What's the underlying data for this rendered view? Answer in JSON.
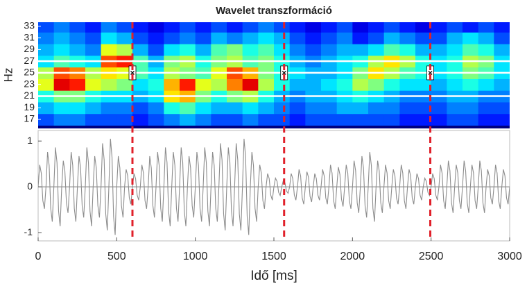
{
  "chart_data": [
    {
      "type": "heatmap",
      "title": "Wavelet transzformáció",
      "ylabel": "Hz",
      "xlim": [
        0,
        3000
      ],
      "ylim": [
        15.45,
        33.7
      ],
      "yticks": [
        17,
        19,
        21,
        23,
        25,
        27,
        29,
        31,
        33
      ],
      "xbins": [
        0,
        100,
        200,
        300,
        400,
        500,
        600,
        700,
        800,
        900,
        1000,
        1100,
        1200,
        1300,
        1400,
        1500,
        1600,
        1700,
        1800,
        1900,
        2000,
        2100,
        2200,
        2300,
        2400,
        2500,
        2600,
        2700,
        2800,
        2900,
        3000
      ],
      "y": [
        17,
        19,
        21,
        23,
        25,
        27,
        29,
        31,
        33
      ],
      "z": [
        [
          0.2,
          0.25,
          0.25,
          0.2,
          0.2,
          0.2,
          0.15,
          0.2,
          0.25,
          0.3,
          0.25,
          0.2,
          0.2,
          0.25,
          0.2,
          0.2,
          0.15,
          0.2,
          0.2,
          0.2,
          0.2,
          0.2,
          0.2,
          0.15,
          0.15,
          0.15,
          0.2,
          0.2,
          0.15,
          0.15
        ],
        [
          0.3,
          0.35,
          0.35,
          0.3,
          0.25,
          0.25,
          0.2,
          0.25,
          0.4,
          0.45,
          0.35,
          0.3,
          0.3,
          0.35,
          0.3,
          0.25,
          0.2,
          0.25,
          0.25,
          0.3,
          0.3,
          0.25,
          0.25,
          0.2,
          0.2,
          0.2,
          0.25,
          0.25,
          0.2,
          0.2
        ],
        [
          0.4,
          0.5,
          0.5,
          0.4,
          0.35,
          0.35,
          0.3,
          0.35,
          0.65,
          0.7,
          0.5,
          0.4,
          0.5,
          0.55,
          0.4,
          0.3,
          0.25,
          0.3,
          0.3,
          0.35,
          0.4,
          0.35,
          0.3,
          0.25,
          0.25,
          0.25,
          0.3,
          0.3,
          0.25,
          0.25
        ],
        [
          0.6,
          0.9,
          0.85,
          0.6,
          0.55,
          0.5,
          0.35,
          0.4,
          0.7,
          0.85,
          0.6,
          0.55,
          0.75,
          0.9,
          0.55,
          0.4,
          0.3,
          0.3,
          0.35,
          0.4,
          0.55,
          0.5,
          0.4,
          0.35,
          0.35,
          0.3,
          0.35,
          0.4,
          0.35,
          0.3
        ],
        [
          0.55,
          0.8,
          0.75,
          0.55,
          0.65,
          0.6,
          0.45,
          0.35,
          0.55,
          0.5,
          0.45,
          0.6,
          0.8,
          0.7,
          0.5,
          0.4,
          0.35,
          0.3,
          0.3,
          0.35,
          0.5,
          0.65,
          0.55,
          0.45,
          0.4,
          0.35,
          0.4,
          0.5,
          0.45,
          0.35
        ],
        [
          0.35,
          0.45,
          0.4,
          0.35,
          0.8,
          0.85,
          0.45,
          0.3,
          0.5,
          0.55,
          0.4,
          0.5,
          0.55,
          0.45,
          0.5,
          0.4,
          0.3,
          0.25,
          0.3,
          0.35,
          0.4,
          0.55,
          0.65,
          0.55,
          0.4,
          0.35,
          0.4,
          0.55,
          0.5,
          0.35
        ],
        [
          0.3,
          0.35,
          0.3,
          0.25,
          0.6,
          0.55,
          0.3,
          0.2,
          0.35,
          0.4,
          0.3,
          0.45,
          0.5,
          0.4,
          0.45,
          0.35,
          0.25,
          0.2,
          0.25,
          0.3,
          0.3,
          0.35,
          0.45,
          0.4,
          0.3,
          0.3,
          0.35,
          0.45,
          0.4,
          0.3
        ],
        [
          0.25,
          0.3,
          0.25,
          0.2,
          0.35,
          0.3,
          0.2,
          0.15,
          0.2,
          0.25,
          0.2,
          0.3,
          0.25,
          0.3,
          0.35,
          0.3,
          0.2,
          0.15,
          0.2,
          0.25,
          0.15,
          0.2,
          0.3,
          0.25,
          0.2,
          0.2,
          0.3,
          0.35,
          0.3,
          0.2
        ],
        [
          0.2,
          0.25,
          0.2,
          0.15,
          0.25,
          0.2,
          0.15,
          0.1,
          0.15,
          0.2,
          0.15,
          0.2,
          0.15,
          0.2,
          0.25,
          0.2,
          0.15,
          0.1,
          0.15,
          0.2,
          0.1,
          0.15,
          0.2,
          0.15,
          0.1,
          0.15,
          0.2,
          0.15,
          0.2,
          0.15
        ]
      ],
      "hlines": [
        21,
        25,
        27
      ],
      "hline_color": "#ffffff",
      "markers": {
        "x": [
          600,
          1565,
          2495
        ],
        "y": [
          25,
          25,
          25
        ]
      }
    },
    {
      "type": "line",
      "xlabel": "Idő [ms]",
      "color": "#8c8c8c",
      "xlim": [
        0,
        3000
      ],
      "ylim": [
        -1.18,
        1.23
      ],
      "xticks": [
        0,
        500,
        1000,
        1500,
        2000,
        2500,
        3000
      ],
      "yticks": [
        -1,
        0,
        1
      ],
      "hlines": [
        0
      ],
      "hline_color": "#777777",
      "vlines": [
        600,
        1565,
        2495
      ],
      "vline_color": "#e0202a",
      "x": [
        0,
        10,
        20,
        30,
        40,
        50,
        60,
        70,
        80,
        90,
        100,
        110,
        120,
        130,
        140,
        150,
        160,
        170,
        180,
        190,
        200,
        210,
        220,
        230,
        240,
        250,
        260,
        270,
        280,
        290,
        300,
        310,
        320,
        330,
        340,
        350,
        360,
        370,
        380,
        390,
        400,
        410,
        420,
        430,
        440,
        450,
        460,
        470,
        480,
        490,
        500,
        510,
        520,
        530,
        540,
        550,
        560,
        570,
        580,
        590,
        600,
        610,
        620,
        630,
        640,
        650,
        660,
        670,
        680,
        690,
        700,
        710,
        720,
        730,
        740,
        750,
        760,
        770,
        780,
        790,
        800,
        810,
        820,
        830,
        840,
        850,
        860,
        870,
        880,
        890,
        900,
        910,
        920,
        930,
        940,
        950,
        960,
        970,
        980,
        990,
        1000,
        1010,
        1020,
        1030,
        1040,
        1050,
        1060,
        1070,
        1080,
        1090,
        1100,
        1110,
        1120,
        1130,
        1140,
        1150,
        1160,
        1170,
        1180,
        1190,
        1200,
        1210,
        1220,
        1230,
        1240,
        1250,
        1260,
        1270,
        1280,
        1290,
        1300,
        1310,
        1320,
        1330,
        1340,
        1350,
        1360,
        1370,
        1380,
        1390,
        1400,
        1410,
        1420,
        1430,
        1440,
        1450,
        1460,
        1470,
        1480,
        1490,
        1500,
        1510,
        1520,
        1530,
        1540,
        1550,
        1560,
        1570,
        1580,
        1590,
        1600,
        1610,
        1620,
        1630,
        1640,
        1650,
        1660,
        1670,
        1680,
        1690,
        1700,
        1710,
        1720,
        1730,
        1740,
        1750,
        1760,
        1770,
        1780,
        1790,
        1800,
        1810,
        1820,
        1830,
        1840,
        1850,
        1860,
        1870,
        1880,
        1890,
        1900,
        1910,
        1920,
        1930,
        1940,
        1950,
        1960,
        1970,
        1980,
        1990,
        2000,
        2010,
        2020,
        2030,
        2040,
        2050,
        2060,
        2070,
        2080,
        2090,
        2100,
        2110,
        2120,
        2130,
        2140,
        2150,
        2160,
        2170,
        2180,
        2190,
        2200,
        2210,
        2220,
        2230,
        2240,
        2250,
        2260,
        2270,
        2280,
        2290,
        2300,
        2310,
        2320,
        2330,
        2340,
        2350,
        2360,
        2370,
        2380,
        2390,
        2400,
        2410,
        2420,
        2430,
        2440,
        2450,
        2460,
        2470,
        2480,
        2490,
        2500,
        2510,
        2520,
        2530,
        2540,
        2550,
        2560,
        2570,
        2580,
        2590,
        2600,
        2610,
        2620,
        2630,
        2640,
        2650,
        2660,
        2670,
        2680,
        2690,
        2700,
        2710,
        2720,
        2730,
        2740,
        2750,
        2760,
        2770,
        2780,
        2790,
        2800,
        2810,
        2820,
        2830,
        2840,
        2850,
        2860,
        2870,
        2880,
        2890,
        2900,
        2910,
        2920,
        2930,
        2940,
        2950,
        2960,
        2970,
        2980,
        2990,
        3000
      ],
      "values": [
        0,
        0.48,
        0.3,
        -0.3,
        -0.48,
        0,
        0.76,
        0.47,
        -0.47,
        -0.76,
        0,
        0.86,
        0.53,
        -0.53,
        -0.86,
        0,
        0.57,
        0.35,
        -0.35,
        -0.57,
        0,
        0.76,
        0.47,
        -0.47,
        -0.76,
        0,
        0.67,
        0.41,
        -0.41,
        -0.67,
        0,
        0.86,
        0.53,
        -0.53,
        -0.86,
        0,
        0.67,
        0.41,
        -0.41,
        -0.67,
        0,
        0.95,
        0.59,
        -0.59,
        -0.95,
        0,
        1.05,
        0.65,
        -0.65,
        -1.05,
        0,
        0.67,
        0.41,
        -0.41,
        -0.67,
        0,
        0.38,
        0.24,
        -0.24,
        -0.38,
        0,
        0.29,
        0.18,
        -0.18,
        -0.29,
        0,
        0.48,
        0.3,
        -0.3,
        -0.48,
        0,
        0.67,
        0.41,
        -0.41,
        -0.67,
        0,
        0.76,
        0.47,
        -0.47,
        -0.76,
        0,
        0.86,
        0.53,
        -0.53,
        -0.86,
        0,
        0.76,
        0.47,
        -0.47,
        -0.76,
        0,
        0.86,
        0.53,
        -0.53,
        -0.86,
        0,
        0.67,
        0.41,
        -0.41,
        -0.67,
        0,
        0.76,
        0.47,
        -0.47,
        -0.76,
        0,
        0.86,
        0.53,
        -0.53,
        -0.86,
        0,
        0.76,
        0.47,
        -0.47,
        -0.76,
        0,
        0.95,
        0.59,
        -0.59,
        -0.95,
        0,
        0.86,
        0.53,
        -0.53,
        -0.86,
        0,
        0.95,
        0.59,
        -0.59,
        -0.95,
        0,
        1.05,
        0.65,
        -0.65,
        -1.05,
        0,
        0.76,
        0.47,
        -0.47,
        -0.76,
        0,
        0.48,
        0.3,
        -0.3,
        -0.48,
        0,
        0.29,
        0.18,
        -0.18,
        -0.29,
        0,
        0.19,
        0.12,
        -0.12,
        -0.19,
        0,
        0.14,
        0.09,
        -0.09,
        -0.14,
        0,
        0.29,
        0.18,
        -0.18,
        -0.29,
        0,
        0.38,
        0.24,
        -0.24,
        -0.38,
        0,
        0.33,
        0.21,
        -0.21,
        -0.33,
        0,
        0.29,
        0.18,
        -0.18,
        -0.29,
        0,
        0.38,
        0.24,
        -0.24,
        -0.38,
        0,
        0.48,
        0.3,
        -0.3,
        -0.48,
        0,
        0.43,
        0.27,
        -0.27,
        -0.43,
        0,
        0.48,
        0.3,
        -0.3,
        -0.48,
        0,
        0.57,
        0.35,
        -0.35,
        -0.57,
        0,
        0.67,
        0.41,
        -0.41,
        -0.67,
        0,
        0.76,
        0.47,
        -0.47,
        -0.76,
        0,
        0.57,
        0.35,
        -0.35,
        -0.57,
        0,
        0.48,
        0.3,
        -0.3,
        -0.48,
        0,
        0.38,
        0.24,
        -0.24,
        -0.38,
        0,
        0.48,
        0.3,
        -0.3,
        -0.48,
        0,
        0.38,
        0.24,
        -0.24,
        -0.38,
        0,
        0.29,
        0.18,
        -0.18,
        -0.29,
        0,
        0.19,
        0.12,
        -0.12,
        -0.19,
        0,
        0.29,
        0.18,
        -0.18,
        -0.29,
        0,
        0.48,
        0.3,
        -0.3,
        -0.48,
        0,
        0.57,
        0.35,
        -0.35,
        -0.57,
        0,
        0.48,
        0.3,
        -0.3,
        -0.48,
        0,
        0.57,
        0.35,
        -0.35,
        -0.57,
        0,
        0.48,
        0.3,
        -0.3,
        -0.48,
        0,
        0.57,
        0.35,
        -0.35,
        -0.57,
        0,
        0.38,
        0.24,
        -0.24,
        -0.38,
        0,
        0.48,
        0.3,
        -0.3,
        -0.48,
        0,
        0.38,
        0.24,
        -0.24,
        -0.38,
        0
      ]
    }
  ]
}
